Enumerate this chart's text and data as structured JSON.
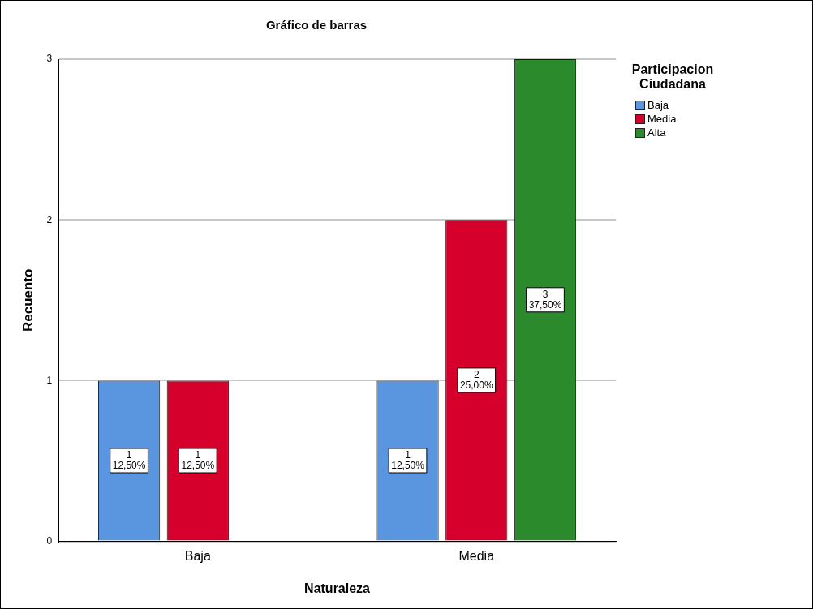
{
  "chart_data": {
    "type": "bar",
    "title": "Gráfico de barras",
    "xlabel": "Naturaleza",
    "ylabel": "Recuento",
    "legend_title": "Participacion Ciudadana",
    "categories": [
      "Baja",
      "Media"
    ],
    "series": [
      {
        "name": "Baja",
        "color": "#5a96e0",
        "values": [
          1,
          1
        ],
        "value_labels": [
          "1\n12,50%",
          "1\n12,50%"
        ]
      },
      {
        "name": "Media",
        "color": "#d5002c",
        "values": [
          1,
          2
        ],
        "value_labels": [
          "1\n12,50%",
          "2\n25,00%"
        ]
      },
      {
        "name": "Alta",
        "color": "#2b8a2b",
        "values": [
          null,
          3
        ],
        "value_labels": [
          null,
          "3\n37,50%"
        ]
      }
    ],
    "ylim": [
      0,
      3
    ],
    "yticks": [
      0,
      1,
      2,
      3
    ],
    "grid": "y",
    "legend": "top right"
  }
}
